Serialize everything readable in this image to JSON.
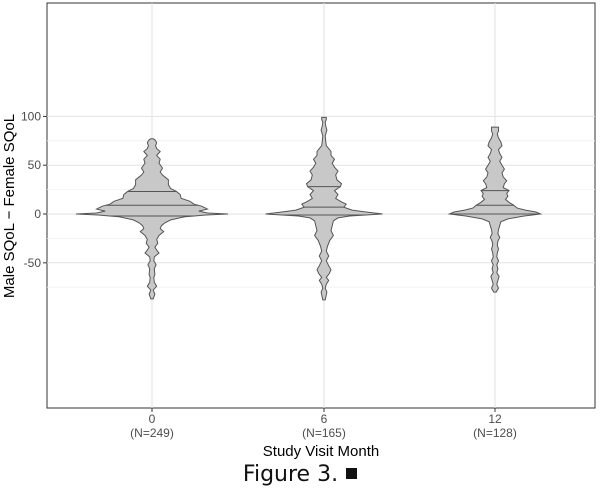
{
  "chart_data": {
    "type": "violin",
    "xlabel": "Study Visit Month",
    "ylabel": "Male SQoL − Female SQoL",
    "ylim": [
      -95,
      102
    ],
    "yticks": [
      -50,
      0,
      50,
      100
    ],
    "grid": true,
    "groups": [
      {
        "label": "0",
        "n_label": "(N=249)",
        "min": -87,
        "max": 77,
        "quantiles": [
          -2,
          9,
          23
        ],
        "profile": [
          [
            -87,
            2
          ],
          [
            -82,
            5
          ],
          [
            -78,
            2
          ],
          [
            -74,
            8
          ],
          [
            -70,
            4
          ],
          [
            -65,
            3
          ],
          [
            -62,
            5
          ],
          [
            -56,
            4
          ],
          [
            -52,
            7
          ],
          [
            -48,
            3
          ],
          [
            -44,
            4
          ],
          [
            -40,
            12
          ],
          [
            -37,
            8
          ],
          [
            -34,
            5
          ],
          [
            -30,
            10
          ],
          [
            -26,
            8
          ],
          [
            -22,
            12
          ],
          [
            -18,
            20
          ],
          [
            -15,
            14
          ],
          [
            -12,
            16
          ],
          [
            -9,
            22
          ],
          [
            -6,
            32
          ],
          [
            -3,
            55
          ],
          [
            -1,
            92
          ],
          [
            0,
            130
          ],
          [
            1,
            95
          ],
          [
            3,
            80
          ],
          [
            5,
            95
          ],
          [
            8,
            85
          ],
          [
            10,
            72
          ],
          [
            13,
            65
          ],
          [
            16,
            50
          ],
          [
            20,
            48
          ],
          [
            23,
            42
          ],
          [
            26,
            32
          ],
          [
            30,
            28
          ],
          [
            35,
            28
          ],
          [
            40,
            18
          ],
          [
            43,
            14
          ],
          [
            47,
            18
          ],
          [
            52,
            12
          ],
          [
            56,
            14
          ],
          [
            60,
            8
          ],
          [
            64,
            14
          ],
          [
            67,
            8
          ],
          [
            70,
            6
          ],
          [
            73,
            8
          ],
          [
            76,
            5
          ],
          [
            77,
            2
          ]
        ]
      },
      {
        "label": "6",
        "n_label": "(N=165)",
        "min": -88,
        "max": 99,
        "quantiles": [
          -1,
          7,
          28
        ],
        "profile": [
          [
            -88,
            2
          ],
          [
            -80,
            5
          ],
          [
            -76,
            2
          ],
          [
            -72,
            4
          ],
          [
            -68,
            8
          ],
          [
            -65,
            4
          ],
          [
            -61,
            9
          ],
          [
            -57,
            12
          ],
          [
            -53,
            8
          ],
          [
            -48,
            4
          ],
          [
            -43,
            8
          ],
          [
            -38,
            4
          ],
          [
            -33,
            6
          ],
          [
            -27,
            10
          ],
          [
            -22,
            16
          ],
          [
            -17,
            12
          ],
          [
            -12,
            14
          ],
          [
            -7,
            16
          ],
          [
            -4,
            24
          ],
          [
            -2,
            44
          ],
          [
            0,
            100
          ],
          [
            2,
            72
          ],
          [
            4,
            48
          ],
          [
            7,
            34
          ],
          [
            10,
            38
          ],
          [
            13,
            28
          ],
          [
            16,
            20
          ],
          [
            20,
            24
          ],
          [
            24,
            18
          ],
          [
            28,
            28
          ],
          [
            31,
            30
          ],
          [
            35,
            22
          ],
          [
            40,
            20
          ],
          [
            44,
            24
          ],
          [
            48,
            18
          ],
          [
            52,
            14
          ],
          [
            56,
            18
          ],
          [
            60,
            12
          ],
          [
            64,
            12
          ],
          [
            67,
            8
          ],
          [
            70,
            4
          ],
          [
            74,
            3
          ],
          [
            80,
            2
          ],
          [
            86,
            5
          ],
          [
            90,
            3
          ],
          [
            94,
            2
          ],
          [
            97,
            4
          ],
          [
            99,
            4
          ]
        ]
      },
      {
        "label": "12",
        "n_label": "(N=128)",
        "min": -80,
        "max": 89,
        "quantiles": [
          0,
          9,
          24
        ],
        "profile": [
          [
            -80,
            2
          ],
          [
            -76,
            6
          ],
          [
            -72,
            3
          ],
          [
            -68,
            5
          ],
          [
            -64,
            7
          ],
          [
            -60,
            3
          ],
          [
            -56,
            5
          ],
          [
            -52,
            3
          ],
          [
            -48,
            6
          ],
          [
            -44,
            3
          ],
          [
            -40,
            4
          ],
          [
            -36,
            6
          ],
          [
            -32,
            4
          ],
          [
            -28,
            5
          ],
          [
            -24,
            8
          ],
          [
            -20,
            5
          ],
          [
            -16,
            6
          ],
          [
            -12,
            8
          ],
          [
            -8,
            10
          ],
          [
            -5,
            22
          ],
          [
            -2,
            50
          ],
          [
            0,
            78
          ],
          [
            2,
            70
          ],
          [
            4,
            52
          ],
          [
            6,
            38
          ],
          [
            9,
            32
          ],
          [
            12,
            24
          ],
          [
            15,
            18
          ],
          [
            18,
            22
          ],
          [
            21,
            20
          ],
          [
            24,
            24
          ],
          [
            27,
            14
          ],
          [
            31,
            16
          ],
          [
            34,
            20
          ],
          [
            38,
            14
          ],
          [
            42,
            12
          ],
          [
            46,
            16
          ],
          [
            50,
            12
          ],
          [
            54,
            8
          ],
          [
            58,
            12
          ],
          [
            62,
            8
          ],
          [
            66,
            6
          ],
          [
            70,
            12
          ],
          [
            74,
            10
          ],
          [
            78,
            6
          ],
          [
            82,
            4
          ],
          [
            85,
            6
          ],
          [
            88,
            6
          ],
          [
            89,
            6
          ]
        ]
      }
    ]
  },
  "caption": "Figure 3."
}
